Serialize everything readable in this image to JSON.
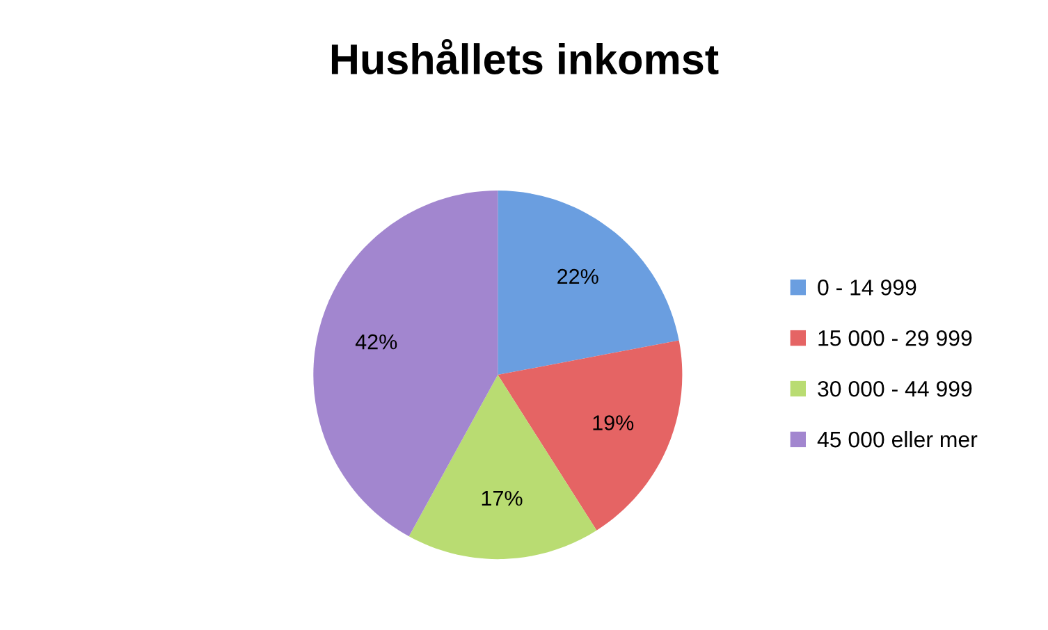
{
  "chart_data": {
    "type": "pie",
    "title": "Hushållets inkomst",
    "categories": [
      "0 - 14 999",
      "15 000 - 29 999",
      "30 000 - 44 999",
      "45 000 eller mer"
    ],
    "values": [
      22,
      19,
      17,
      42
    ],
    "colors": [
      "#6a9ee0",
      "#e56464",
      "#b9dc72",
      "#a286cf"
    ],
    "value_labels": [
      "22%",
      "19%",
      "17%",
      "42%"
    ],
    "legend": "right"
  }
}
